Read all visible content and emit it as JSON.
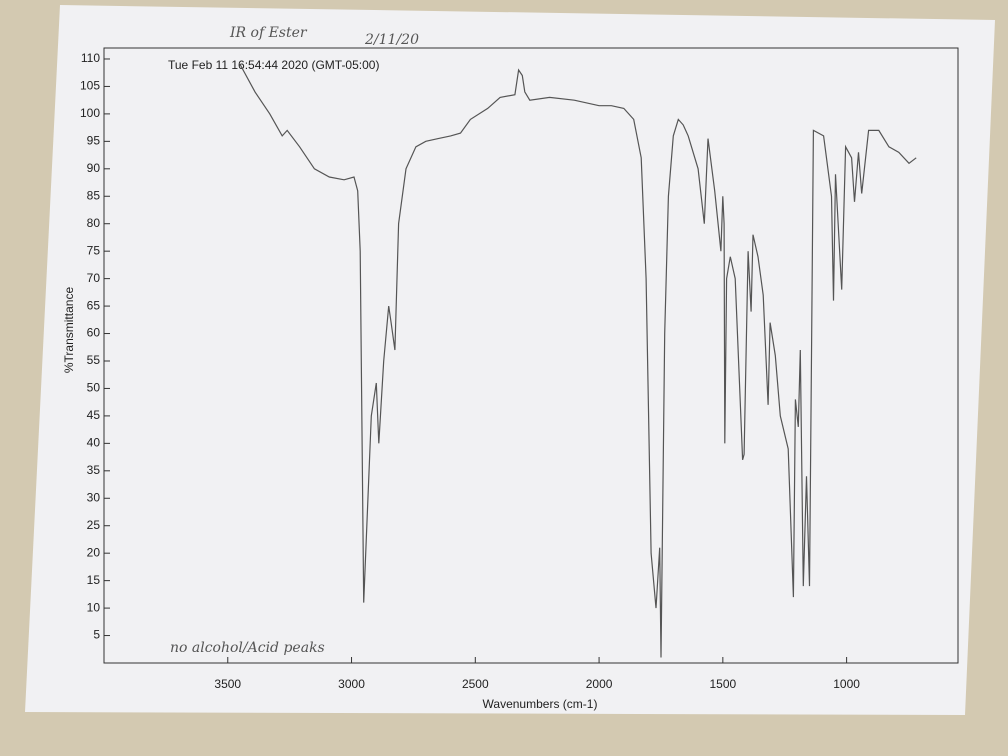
{
  "chart_data": {
    "type": "line",
    "timestamp": "Tue Feb 11 16:54:44 2020 (GMT-05:00)",
    "annotations": [
      "IR of Ester",
      "2/11/20",
      "no alcohol/Acid peaks"
    ],
    "xlabel": "Wavenumbers (cm-1)",
    "ylabel": "%Transmittance",
    "xlim": [
      4000,
      550
    ],
    "ylim": [
      0,
      112
    ],
    "xticks": [
      3500,
      3000,
      2500,
      2000,
      1500,
      1000
    ],
    "yticks": [
      5,
      10,
      15,
      20,
      25,
      30,
      35,
      40,
      45,
      50,
      55,
      60,
      65,
      70,
      75,
      80,
      85,
      90,
      95,
      100,
      105,
      110
    ],
    "color": "#555555",
    "x": [
      3450,
      3390,
      3330,
      3280,
      3260,
      3210,
      3150,
      3090,
      3030,
      2990,
      2975,
      2965,
      2951,
      2920,
      2900,
      2890,
      2870,
      2850,
      2840,
      2825,
      2810,
      2780,
      2740,
      2700,
      2650,
      2600,
      2560,
      2520,
      2450,
      2400,
      2340,
      2325,
      2310,
      2300,
      2280,
      2200,
      2100,
      2050,
      2000,
      1950,
      1900,
      1860,
      1830,
      1810,
      1790,
      1770,
      1755,
      1750,
      1745,
      1735,
      1720,
      1700,
      1680,
      1660,
      1640,
      1600,
      1575,
      1560,
      1533,
      1508,
      1500,
      1495,
      1492,
      1485,
      1470,
      1450,
      1432,
      1420,
      1414,
      1398,
      1386,
      1378,
      1358,
      1337,
      1317,
      1309,
      1288,
      1268,
      1236,
      1215,
      1207,
      1195,
      1187,
      1175,
      1162,
      1150,
      1142,
      1134,
      1093,
      1061,
      1053,
      1045,
      1020,
      1004,
      980,
      968,
      952,
      939,
      911,
      870,
      829,
      789,
      748,
      719
    ],
    "values": [
      109,
      104,
      100,
      96,
      97,
      94,
      90,
      88.5,
      88,
      88.5,
      86,
      75,
      11,
      45,
      51,
      40,
      55,
      65,
      62,
      57,
      80,
      90,
      94,
      95,
      95.5,
      96,
      96.5,
      99,
      101,
      103,
      103.5,
      108,
      107,
      104,
      102.5,
      103,
      102.5,
      102,
      101.5,
      101.5,
      101,
      99,
      92,
      70,
      20,
      10,
      21,
      1,
      20,
      60,
      85,
      96,
      99,
      98,
      96,
      90,
      80,
      95.5,
      86,
      75,
      85,
      80,
      40,
      70,
      74,
      70,
      50,
      37,
      38,
      75,
      64,
      78,
      74,
      67,
      47,
      62,
      56,
      45,
      39,
      12,
      48,
      43,
      57,
      14,
      34,
      14,
      56,
      97,
      96,
      85,
      66,
      89,
      68,
      94,
      92,
      84,
      93,
      85.5,
      97,
      97,
      94,
      93,
      91,
      92
    ]
  }
}
